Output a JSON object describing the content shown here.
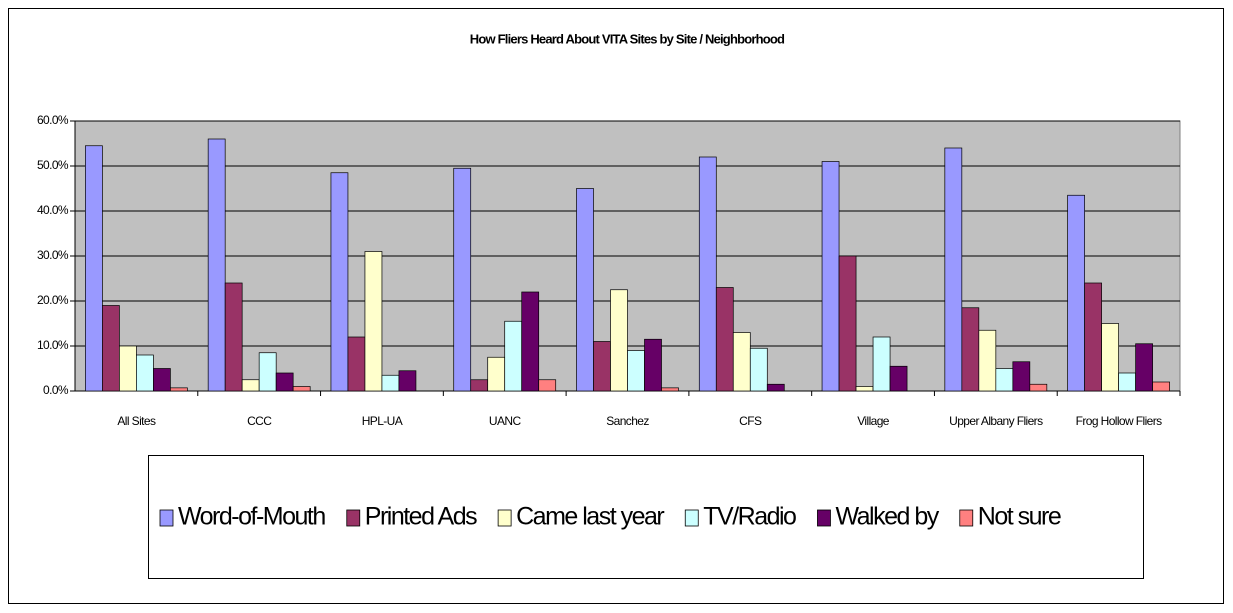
{
  "chart_data": {
    "type": "bar",
    "title": "How Fliers Heard About VITA Sites by Site / Neighborhood",
    "categories": [
      "All Sites",
      "CCC",
      "HPL-UA",
      "UANC",
      "Sanchez",
      "CFS",
      "Village",
      "Upper Albany Fliers",
      "Frog Hollow Fliers"
    ],
    "series": [
      {
        "name": "Word-of-Mouth",
        "color": "#9999ff",
        "values": [
          54.5,
          56,
          48.5,
          49.5,
          45,
          52,
          51,
          54,
          43.5
        ]
      },
      {
        "name": "Printed Ads",
        "color": "#993366",
        "values": [
          19,
          24,
          12,
          2.5,
          11,
          23,
          30,
          18.5,
          24
        ]
      },
      {
        "name": "Came last year",
        "color": "#ffffcc",
        "values": [
          10,
          2.5,
          31,
          7.5,
          22.5,
          13,
          1,
          13.5,
          15
        ]
      },
      {
        "name": "TV/Radio",
        "color": "#ccffff",
        "values": [
          8,
          8.5,
          3.5,
          15.5,
          9,
          9.5,
          12,
          5,
          4
        ]
      },
      {
        "name": "Walked by",
        "color": "#660066",
        "values": [
          5,
          4,
          4.5,
          22,
          11.5,
          1.5,
          5.5,
          6.5,
          10.5
        ]
      },
      {
        "name": "Not sure",
        "color": "#ff8080",
        "values": [
          0.7,
          1,
          0,
          2.5,
          0.7,
          0,
          0,
          1.5,
          2
        ]
      }
    ],
    "ylim": [
      0,
      60
    ],
    "yticks": [
      {
        "value": 0,
        "label": "0.0%"
      },
      {
        "value": 10,
        "label": "10.0%"
      },
      {
        "value": 20,
        "label": "20.0%"
      },
      {
        "value": 30,
        "label": "30.0%"
      },
      {
        "value": 40,
        "label": "40.0%"
      },
      {
        "value": 50,
        "label": "50.0%"
      },
      {
        "value": 60,
        "label": "60.0%"
      }
    ],
    "grid": true
  }
}
